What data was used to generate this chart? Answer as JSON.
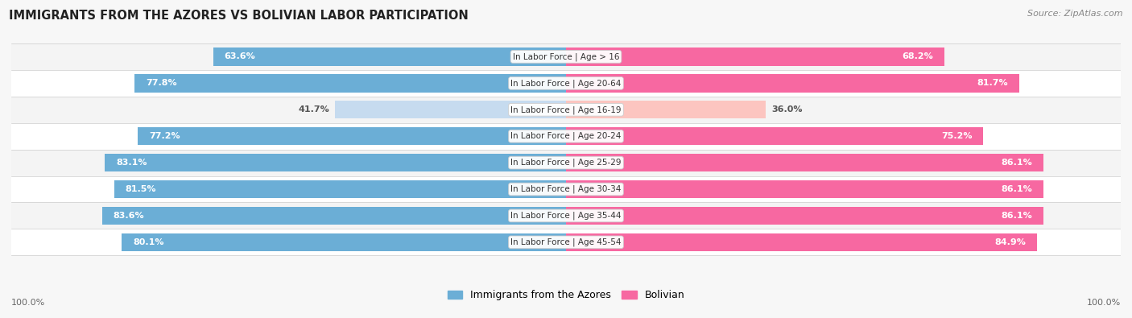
{
  "title": "IMMIGRANTS FROM THE AZORES VS BOLIVIAN LABOR PARTICIPATION",
  "source": "Source: ZipAtlas.com",
  "categories": [
    "In Labor Force | Age > 16",
    "In Labor Force | Age 20-64",
    "In Labor Force | Age 16-19",
    "In Labor Force | Age 20-24",
    "In Labor Force | Age 25-29",
    "In Labor Force | Age 30-34",
    "In Labor Force | Age 35-44",
    "In Labor Force | Age 45-54"
  ],
  "azores_values": [
    63.6,
    77.8,
    41.7,
    77.2,
    83.1,
    81.5,
    83.6,
    80.1
  ],
  "bolivian_values": [
    68.2,
    81.7,
    36.0,
    75.2,
    86.1,
    86.1,
    86.1,
    84.9
  ],
  "azores_color": "#6baed6",
  "azores_color_light": "#c6dbef",
  "bolivian_color": "#f768a1",
  "bolivian_color_light": "#fcc5c0",
  "label_white": "#ffffff",
  "label_dark": "#555555",
  "bg_color": "#f7f7f7",
  "row_bg": "#f0f0f0",
  "bar_height": 0.68,
  "max_val": 100.0,
  "legend_label_azores": "Immigrants from the Azores",
  "legend_label_bolivian": "Bolivian",
  "threshold_low": 50
}
